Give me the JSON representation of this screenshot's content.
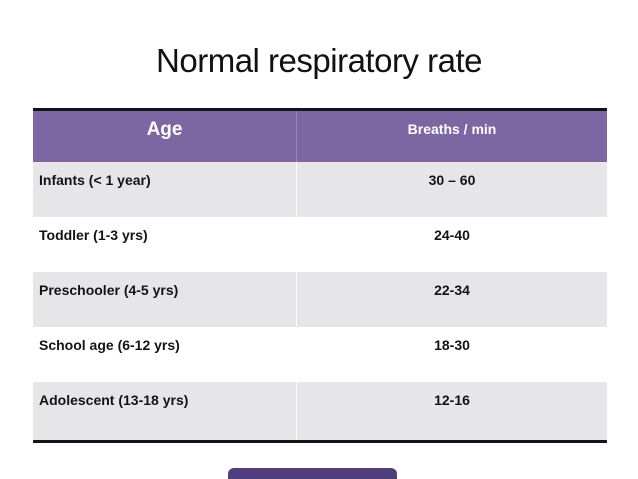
{
  "slide": {
    "title": "Normal respiratory rate"
  },
  "table": {
    "headers": {
      "age": "Age",
      "rate": "Breaths / min"
    },
    "rows": [
      {
        "age": "Infants (< 1 year)",
        "rate": "30 – 60"
      },
      {
        "age": "Toddler (1-3 yrs)",
        "rate": "24-40"
      },
      {
        "age": "Preschooler (4-5 yrs)",
        "rate": "22-34"
      },
      {
        "age": "School age (6-12 yrs)",
        "rate": "18-30"
      },
      {
        "age": "Adolescent (13-18 yrs)",
        "rate": "12-16"
      }
    ]
  },
  "colors": {
    "header_bg": "#7D67A3",
    "header_text": "#FFFFFF",
    "row_alt_bg": "#E6E5E8",
    "row_bg": "#FFFFFF",
    "table_border": "#141414",
    "title_text": "#111111",
    "accent_bar": "#4F3E7E"
  }
}
